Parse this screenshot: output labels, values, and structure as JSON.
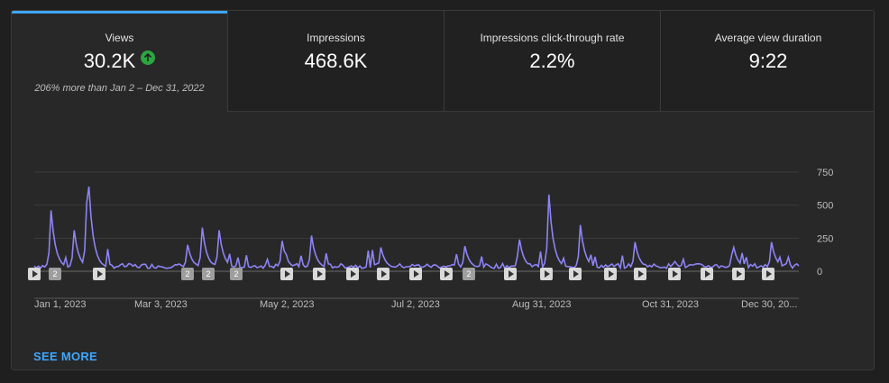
{
  "tabs": [
    {
      "label": "Views",
      "value": "30.2K",
      "note": "206% more than Jan 2 – Dec 31, 2022",
      "trend": "up",
      "active": true
    },
    {
      "label": "Impressions",
      "value": "468.6K"
    },
    {
      "label": "Impressions click-through rate",
      "value": "2.2%"
    },
    {
      "label": "Average view duration",
      "value": "9:22"
    }
  ],
  "colors": {
    "accent": "#3ea6ff",
    "series": "#8c84f5",
    "trend_up": "#2ba640"
  },
  "markers": [
    {
      "type": "video"
    },
    {
      "type": "count",
      "label": "2"
    },
    {
      "type": "video"
    },
    {
      "type": "count",
      "label": "2"
    },
    {
      "type": "count",
      "label": "2"
    },
    {
      "type": "count",
      "label": "2"
    },
    {
      "type": "video"
    },
    {
      "type": "video"
    },
    {
      "type": "video"
    },
    {
      "type": "video"
    },
    {
      "type": "video"
    },
    {
      "type": "video"
    },
    {
      "type": "count",
      "label": "2"
    },
    {
      "type": "video"
    },
    {
      "type": "video"
    },
    {
      "type": "video"
    },
    {
      "type": "video"
    },
    {
      "type": "video"
    },
    {
      "type": "video"
    },
    {
      "type": "video"
    },
    {
      "type": "video"
    },
    {
      "type": "video"
    }
  ],
  "see_more": "SEE MORE",
  "chart_data": {
    "type": "line",
    "title": "",
    "xlabel": "",
    "ylabel": "",
    "x_tick_labels": [
      "Jan 1, 2023",
      "Mar 3, 2023",
      "May 2, 2023",
      "Jul 2, 2023",
      "Aug 31, 2023",
      "Oct 31, 2023",
      "Dec 30, 20..."
    ],
    "y_tick_labels": [
      "750",
      "500",
      "250",
      "0"
    ],
    "ylim": [
      0,
      750
    ],
    "grid": true,
    "series": [
      {
        "x_range": [
          "2023-01-01",
          "2023-12-31"
        ],
        "peaks": [
          {
            "date": "2023-01-09",
            "value": 440
          },
          {
            "date": "2023-01-20",
            "value": 290
          },
          {
            "date": "2023-01-26",
            "value": 500
          },
          {
            "date": "2023-01-27",
            "value": 620
          },
          {
            "date": "2023-03-15",
            "value": 180
          },
          {
            "date": "2023-03-22",
            "value": 310
          },
          {
            "date": "2023-03-30",
            "value": 290
          },
          {
            "date": "2023-04-29",
            "value": 210
          },
          {
            "date": "2023-05-13",
            "value": 250
          },
          {
            "date": "2023-06-15",
            "value": 160
          },
          {
            "date": "2023-07-25",
            "value": 170
          },
          {
            "date": "2023-08-20",
            "value": 220
          },
          {
            "date": "2023-09-03",
            "value": 560
          },
          {
            "date": "2023-09-18",
            "value": 330
          },
          {
            "date": "2023-10-14",
            "value": 200
          },
          {
            "date": "2023-11-30",
            "value": 160
          },
          {
            "date": "2023-12-18",
            "value": 200
          }
        ],
        "baseline": 40
      }
    ]
  }
}
